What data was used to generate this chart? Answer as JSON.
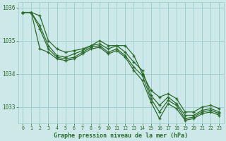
{
  "xlabel": "Graphe pression niveau de la mer (hPa)",
  "bg_color": "#cce8e8",
  "grid_color": "#99cccc",
  "line_color": "#2d6b2d",
  "marker": "+",
  "xlim_min": -0.5,
  "xlim_max": 23.5,
  "ylim_min": 1032.5,
  "ylim_max": 1036.15,
  "yticks": [
    1033,
    1034,
    1035,
    1036
  ],
  "xticks": [
    0,
    1,
    2,
    3,
    4,
    5,
    6,
    7,
    8,
    9,
    10,
    11,
    12,
    13,
    14,
    15,
    16,
    17,
    18,
    19,
    20,
    21,
    22,
    23
  ],
  "series": [
    [
      1035.85,
      1035.85,
      1035.75,
      1035.0,
      1034.75,
      1034.65,
      1034.7,
      1034.75,
      1034.85,
      1035.0,
      1034.85,
      1034.85,
      1034.85,
      1034.55,
      1034.0,
      1033.5,
      1033.3,
      1033.4,
      1033.25,
      1032.85,
      1032.85,
      1033.0,
      1033.05,
      1032.95
    ],
    [
      1035.85,
      1035.85,
      1035.45,
      1034.85,
      1034.55,
      1034.5,
      1034.6,
      1034.7,
      1034.85,
      1034.9,
      1034.75,
      1034.85,
      1034.65,
      1034.35,
      1034.1,
      1033.35,
      1033.05,
      1033.3,
      1033.1,
      1032.75,
      1032.75,
      1032.9,
      1032.95,
      1032.85
    ],
    [
      1035.85,
      1035.85,
      1035.35,
      1034.75,
      1034.5,
      1034.45,
      1034.5,
      1034.65,
      1034.8,
      1034.85,
      1034.65,
      1034.75,
      1034.55,
      1034.2,
      1033.95,
      1033.25,
      1032.85,
      1033.2,
      1033.05,
      1032.65,
      1032.7,
      1032.85,
      1032.9,
      1032.8
    ],
    [
      1035.85,
      1035.85,
      1034.75,
      1034.65,
      1034.45,
      1034.4,
      1034.45,
      1034.6,
      1034.75,
      1034.8,
      1034.6,
      1034.7,
      1034.5,
      1034.1,
      1033.8,
      1033.15,
      1032.65,
      1033.1,
      1032.95,
      1032.6,
      1032.65,
      1032.8,
      1032.85,
      1032.75
    ]
  ]
}
